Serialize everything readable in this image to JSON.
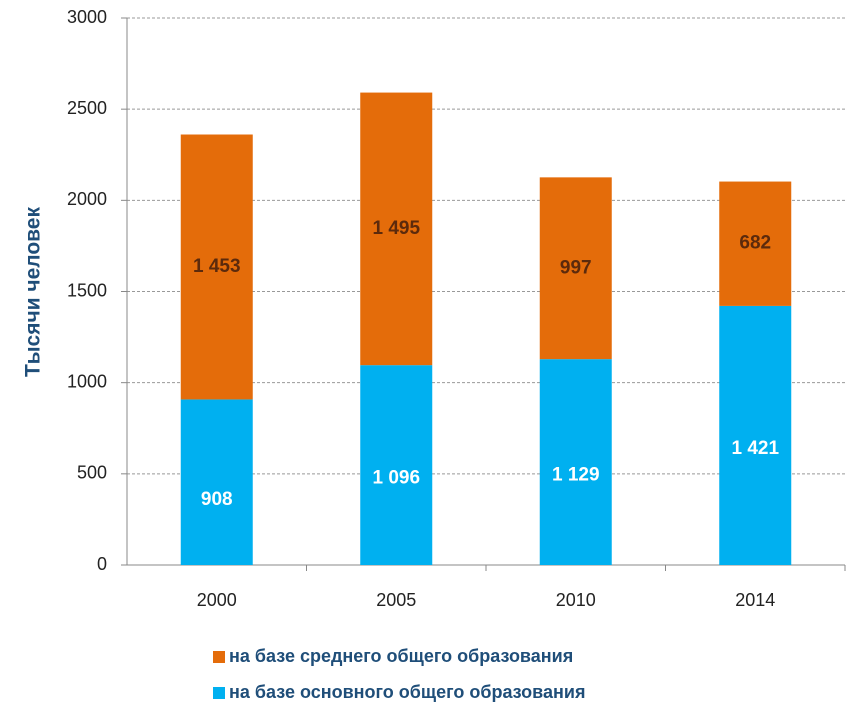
{
  "chart_data": {
    "type": "stacked_bar",
    "y_label": "Тысячи человек",
    "categories": [
      "2000",
      "2005",
      "2010",
      "2014"
    ],
    "series": [
      {
        "name": "на базе основного общего образования",
        "color": "#00b0f0",
        "label_color": "#ffffff",
        "values": [
          908,
          1096,
          1129,
          1421
        ],
        "value_labels": [
          "908",
          "1 096",
          "1 129",
          "1 421"
        ]
      },
      {
        "name": "на базе среднего общего образования",
        "color": "#e46c0a",
        "label_color": "#5c2a0c",
        "values": [
          1453,
          1495,
          997,
          682
        ],
        "value_labels": [
          "1 453",
          "1 495",
          "997",
          "682"
        ]
      }
    ],
    "ylim": [
      0,
      3000
    ],
    "yticks": [
      0,
      500,
      1000,
      1500,
      2000,
      2500,
      3000
    ],
    "grid": true
  }
}
